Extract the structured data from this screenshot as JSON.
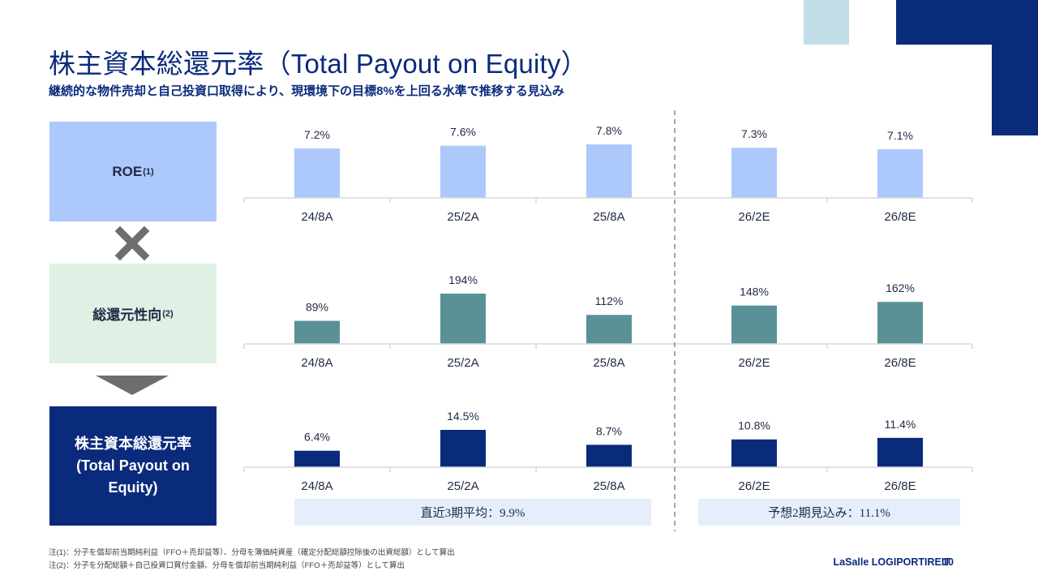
{
  "header": {
    "title": "株主資本総還元率（Total Payout on Equity）",
    "subtitle": "継続的な物件売却と自己投資口取得により、現環境下の目標8%を上回る水準で推移する見込み"
  },
  "labels": {
    "roe": "ROE",
    "roe_note": "(1)",
    "payout": "総還元性向",
    "payout_note": "(2)",
    "tpe_line1": "株主資本総還元率",
    "tpe_line2": "(Total Payout on",
    "tpe_line3": "Equity)"
  },
  "colors": {
    "roe_bar": "#adc8fb",
    "payout_bar": "#5a9197",
    "tpe_bar": "#0a2a7c",
    "navy": "#0a2a7c"
  },
  "chart_data": [
    {
      "type": "bar",
      "name": "ROE",
      "categories": [
        "24/8A",
        "25/2A",
        "25/8A",
        "26/2E",
        "26/8E"
      ],
      "values": [
        7.2,
        7.6,
        7.8,
        7.3,
        7.1
      ],
      "data_labels": [
        "7.2%",
        "7.6%",
        "7.8%",
        "7.3%",
        "7.1%"
      ],
      "unit": "%"
    },
    {
      "type": "bar",
      "name": "総還元性向",
      "categories": [
        "24/8A",
        "25/2A",
        "25/8A",
        "26/2E",
        "26/8E"
      ],
      "values": [
        89,
        194,
        112,
        148,
        162
      ],
      "data_labels": [
        "89%",
        "194%",
        "112%",
        "148%",
        "162%"
      ],
      "unit": "%"
    },
    {
      "type": "bar",
      "name": "株主資本総還元率",
      "categories": [
        "24/8A",
        "25/2A",
        "25/8A",
        "26/2E",
        "26/8E"
      ],
      "values": [
        6.4,
        14.5,
        8.7,
        10.8,
        11.4
      ],
      "data_labels": [
        "6.4%",
        "14.5%",
        "8.7%",
        "10.8%",
        "11.4%"
      ],
      "unit": "%"
    }
  ],
  "averages": {
    "actual": "直近3期平均：9.9%",
    "forecast": "予想2期見込み：11.1%"
  },
  "notes": {
    "note1": "注(1)：分子を償却前当期純利益（FFO＋売却益等）、分母を簿価純資産（確定分配総額控除後の出資総額）として算出",
    "note2": "注(2)：分子を分配総額＋自己投資口買付金額、分母を償却前当期純利益（FFO＋売却益等）として算出"
  },
  "footer": {
    "brand": "LaSalle LOGIPORT REIT",
    "separator": "I",
    "page": "10"
  }
}
